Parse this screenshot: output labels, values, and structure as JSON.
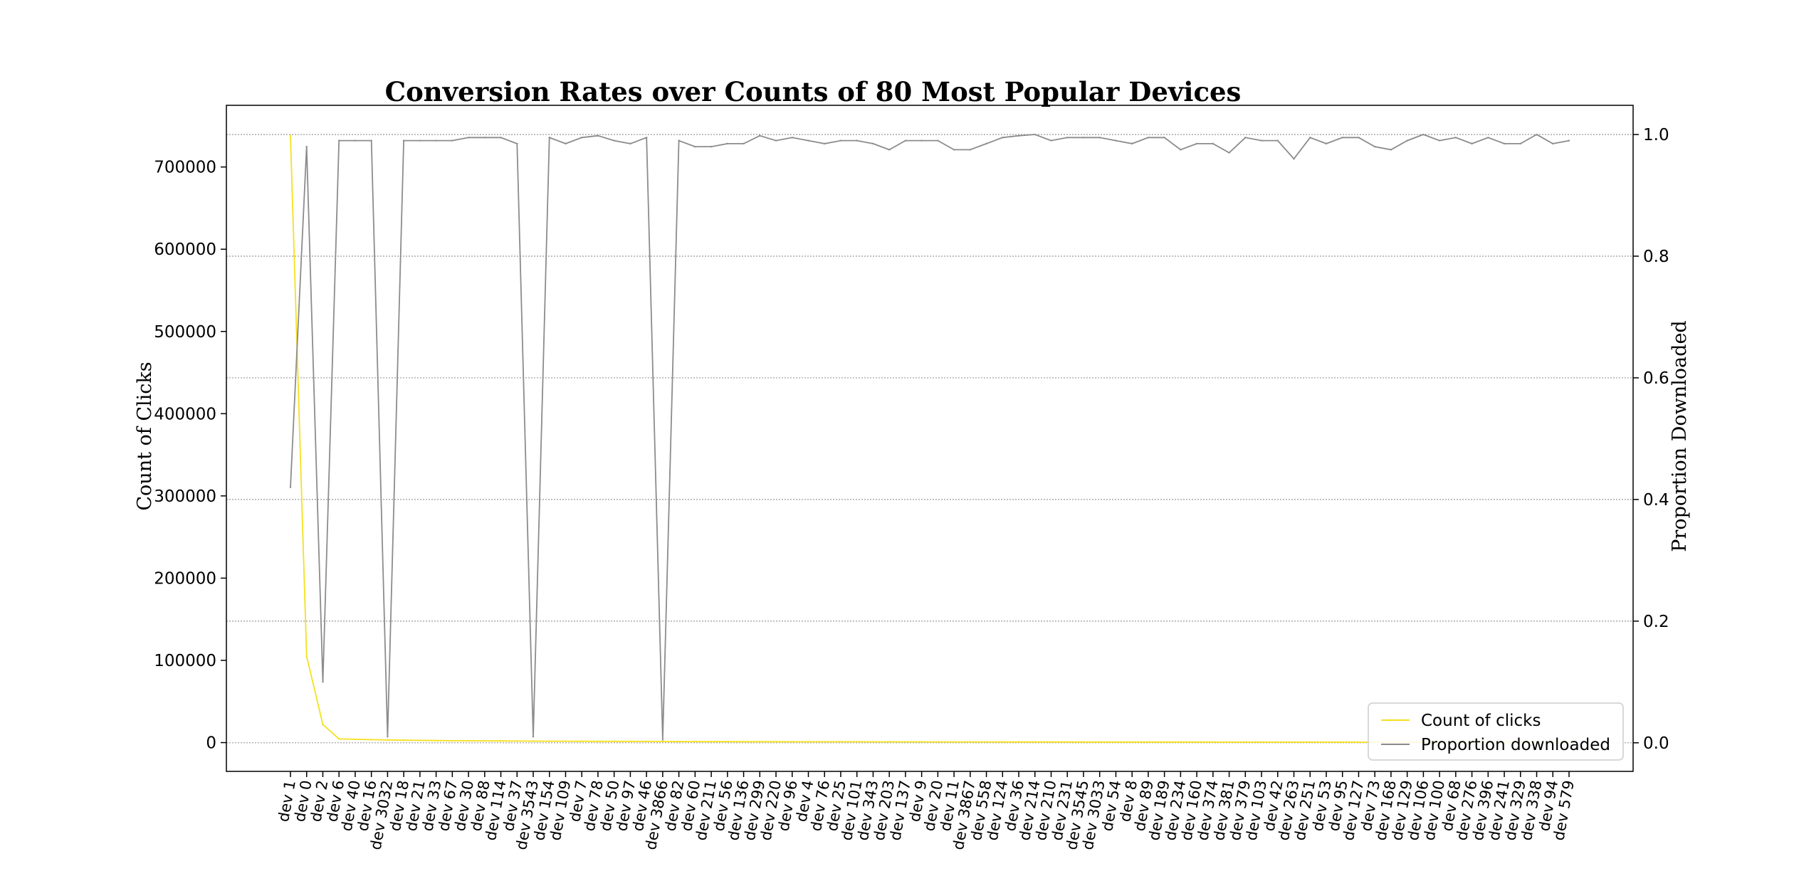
{
  "chart_data": {
    "type": "line",
    "title": "Conversion Rates over Counts of 80 Most Popular Devices",
    "left_axis_label": "Count of Clicks",
    "right_axis_label": "Proportion Downloaded",
    "left_ylim": [
      -35000,
      775000
    ],
    "right_ylim": [
      -0.047,
      1.048
    ],
    "left_ticks": [
      0,
      100000,
      200000,
      300000,
      400000,
      500000,
      600000,
      700000
    ],
    "right_ticks": [
      "0.0",
      "0.2",
      "0.4",
      "0.6",
      "0.8",
      "1.0"
    ],
    "right_grid": true,
    "legend_position": "lower-right",
    "colors": {
      "clicks": "#f5e11e",
      "proportion": "#8c8c8c",
      "grid": "#999999"
    },
    "categories": [
      "dev 1",
      "dev 0",
      "dev 2",
      "dev 6",
      "dev 40",
      "dev 16",
      "dev 3032",
      "dev 18",
      "dev 21",
      "dev 33",
      "dev 67",
      "dev 30",
      "dev 88",
      "dev 114",
      "dev 37",
      "dev 3543",
      "dev 154",
      "dev 109",
      "dev 7",
      "dev 78",
      "dev 50",
      "dev 97",
      "dev 46",
      "dev 3866",
      "dev 82",
      "dev 60",
      "dev 211",
      "dev 56",
      "dev 136",
      "dev 299",
      "dev 220",
      "dev 96",
      "dev 4",
      "dev 76",
      "dev 25",
      "dev 101",
      "dev 343",
      "dev 203",
      "dev 137",
      "dev 9",
      "dev 20",
      "dev 11",
      "dev 3867",
      "dev 558",
      "dev 124",
      "dev 36",
      "dev 214",
      "dev 210",
      "dev 231",
      "dev 3545",
      "dev 3033",
      "dev 54",
      "dev 8",
      "dev 89",
      "dev 189",
      "dev 234",
      "dev 160",
      "dev 374",
      "dev 381",
      "dev 379",
      "dev 103",
      "dev 42",
      "dev 263",
      "dev 251",
      "dev 53",
      "dev 95",
      "dev 127",
      "dev 73",
      "dev 168",
      "dev 129",
      "dev 106",
      "dev 100",
      "dev 68",
      "dev 276",
      "dev 396",
      "dev 241",
      "dev 329",
      "dev 338",
      "dev 94",
      "dev 579"
    ],
    "series": [
      {
        "name": "Count of clicks",
        "axis": "left",
        "values": [
          738000,
          105000,
          22000,
          4500,
          4000,
          3600,
          3200,
          2900,
          2700,
          2500,
          2300,
          2200,
          2100,
          2000,
          1900,
          1800,
          1700,
          1650,
          1600,
          1550,
          1500,
          1450,
          1400,
          1350,
          1300,
          1250,
          1200,
          1150,
          1100,
          1080,
          1060,
          1040,
          1020,
          1000,
          980,
          960,
          940,
          920,
          900,
          880,
          860,
          840,
          820,
          800,
          780,
          760,
          740,
          720,
          700,
          690,
          680,
          670,
          660,
          650,
          640,
          630,
          620,
          610,
          600,
          590,
          580,
          570,
          560,
          550,
          540,
          530,
          520,
          510,
          500,
          490,
          480,
          470,
          460,
          450,
          440,
          430,
          420,
          410,
          400,
          390
        ]
      },
      {
        "name": "Proportion downloaded",
        "axis": "right",
        "values": [
          0.42,
          0.98,
          0.1,
          0.99,
          0.99,
          0.99,
          0.01,
          0.99,
          0.99,
          0.99,
          0.99,
          0.995,
          0.995,
          0.995,
          0.985,
          0.01,
          0.995,
          0.985,
          0.995,
          0.998,
          0.99,
          0.985,
          0.995,
          0.005,
          0.99,
          0.98,
          0.98,
          0.985,
          0.985,
          0.998,
          0.99,
          0.995,
          0.99,
          0.985,
          0.99,
          0.99,
          0.985,
          0.975,
          0.99,
          0.99,
          0.99,
          0.975,
          0.975,
          0.985,
          0.995,
          0.998,
          1.0,
          0.99,
          0.995,
          0.995,
          0.995,
          0.99,
          0.985,
          0.995,
          0.995,
          0.975,
          0.985,
          0.985,
          0.97,
          0.995,
          0.99,
          0.99,
          0.96,
          0.995,
          0.985,
          0.995,
          0.995,
          0.98,
          0.975,
          0.99,
          1.0,
          0.99,
          0.995,
          0.985,
          0.995,
          0.985,
          0.985,
          1.0,
          0.985,
          0.99
        ]
      }
    ]
  }
}
